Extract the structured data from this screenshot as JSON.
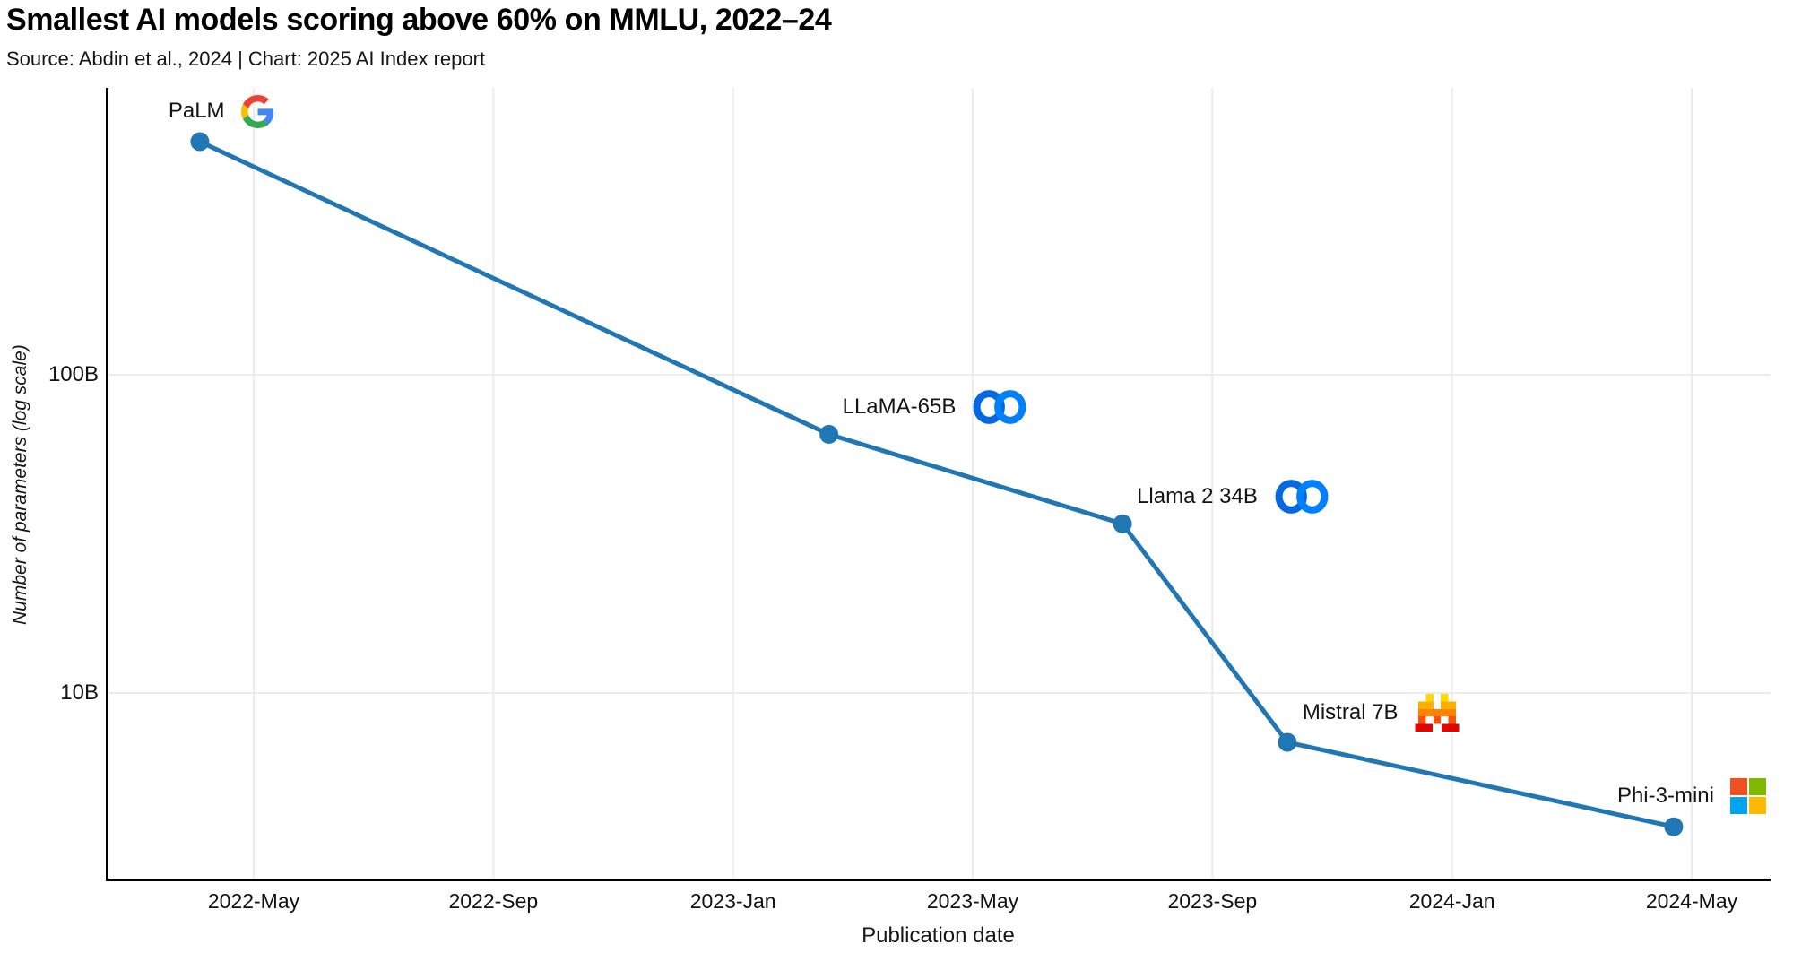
{
  "header": {
    "title": "Smallest AI models scoring above 60% on MMLU, 2022–24",
    "subtitle": "Source: Abdin et al., 2024 | Chart: 2025 AI Index report"
  },
  "chart_data": {
    "type": "line",
    "title": "Smallest AI models scoring above 60% on MMLU, 2022–24",
    "xlabel": "Publication date",
    "ylabel": "Number of parameters (log scale)",
    "y_scale": "log",
    "grid": true,
    "legend": "none",
    "line_color": "#2077b4",
    "grid_color": "#ececec",
    "axis_color": "#000000",
    "x_ticks": [
      {
        "label": "2022-May",
        "month": 4
      },
      {
        "label": "2022-Sep",
        "month": 8
      },
      {
        "label": "2023-Jan",
        "month": 12
      },
      {
        "label": "2023-May",
        "month": 16
      },
      {
        "label": "2023-Sep",
        "month": 20
      },
      {
        "label": "2024-Jan",
        "month": 24
      },
      {
        "label": "2024-May",
        "month": 28
      }
    ],
    "y_ticks": [
      {
        "label": "100B",
        "value_b": 100
      },
      {
        "label": "10B",
        "value_b": 10
      }
    ],
    "series": [
      {
        "name": "Smallest AI model scoring above 60% on MMLU",
        "points": [
          {
            "label": "PaLM",
            "org": "Google",
            "logo": "google-logo-icon",
            "date": "2022-Apr",
            "month": 3.1,
            "parameters_b": 540
          },
          {
            "label": "LLaMA-65B",
            "org": "Meta",
            "logo": "meta-logo-icon",
            "date": "2023-Feb",
            "month": 13.6,
            "parameters_b": 65
          },
          {
            "label": "Llama 2 34B",
            "org": "Meta",
            "logo": "meta-logo-icon",
            "date": "2023-Jul",
            "month": 18.5,
            "parameters_b": 34
          },
          {
            "label": "Mistral 7B",
            "org": "Mistral AI",
            "logo": "mistral-logo-icon",
            "date": "2023-Oct",
            "month": 21.25,
            "parameters_b": 7
          },
          {
            "label": "Phi-3-mini",
            "org": "Microsoft",
            "logo": "microsoft-logo-icon",
            "date": "2024-Apr",
            "month": 27.7,
            "parameters_b": 3.8
          }
        ]
      }
    ],
    "logo_colors": {
      "google": [
        "#4285F4",
        "#EA4335",
        "#FBBC05",
        "#34A853"
      ],
      "meta": [
        "#0668E1",
        "#0080FB"
      ],
      "mistral": [
        "#FFD800",
        "#FFAF00",
        "#FF8205",
        "#FA500F",
        "#E10500"
      ],
      "microsoft": [
        "#F25022",
        "#7FBA00",
        "#00A4EF",
        "#FFB900"
      ]
    }
  }
}
